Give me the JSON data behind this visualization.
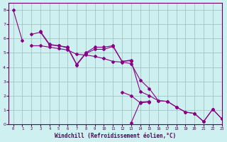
{
  "xlabel": "Windchill (Refroidissement éolien,°C)",
  "bg_color": "#cef0f0",
  "grid_color": "#99cccc",
  "line_color": "#880088",
  "xlim": [
    -0.5,
    23
  ],
  "ylim": [
    0,
    8.5
  ],
  "xticks": [
    0,
    1,
    2,
    3,
    4,
    5,
    6,
    7,
    8,
    9,
    10,
    11,
    12,
    13,
    14,
    15,
    16,
    17,
    18,
    19,
    20,
    21,
    22,
    23
  ],
  "yticks": [
    0,
    1,
    2,
    3,
    4,
    5,
    6,
    7,
    8
  ],
  "lines": [
    [
      8.0,
      5.85,
      null,
      null,
      null,
      null,
      null,
      null,
      null,
      null,
      null,
      null,
      null,
      null,
      null,
      null,
      null,
      null,
      null,
      null,
      null,
      null,
      null,
      null
    ],
    [
      null,
      null,
      5.5,
      5.5,
      5.4,
      5.3,
      5.2,
      4.9,
      4.85,
      4.75,
      4.6,
      4.4,
      4.35,
      4.25,
      3.1,
      2.5,
      1.65,
      1.6,
      1.2,
      0.85,
      0.75,
      0.18,
      1.05,
      0.38
    ],
    [
      null,
      null,
      6.3,
      6.45,
      5.55,
      5.5,
      5.35,
      4.15,
      4.95,
      5.25,
      5.25,
      5.45,
      4.4,
      4.45,
      2.3,
      2.0,
      1.65,
      1.6,
      1.2,
      0.85,
      0.75,
      0.18,
      1.05,
      0.38
    ],
    [
      null,
      null,
      null,
      6.5,
      5.6,
      5.5,
      5.4,
      4.2,
      5.0,
      5.4,
      5.4,
      5.5,
      4.4,
      4.5,
      null,
      null,
      null,
      null,
      null,
      null,
      null,
      null,
      null,
      null
    ],
    [
      null,
      null,
      null,
      null,
      null,
      null,
      null,
      null,
      null,
      null,
      null,
      null,
      null,
      0.08,
      1.55,
      1.6,
      null,
      null,
      null,
      null,
      null,
      null,
      null,
      null
    ],
    [
      null,
      null,
      null,
      null,
      null,
      null,
      null,
      null,
      null,
      null,
      null,
      null,
      2.25,
      2.0,
      1.5,
      1.55,
      null,
      null,
      null,
      null,
      null,
      null,
      null,
      null
    ]
  ]
}
